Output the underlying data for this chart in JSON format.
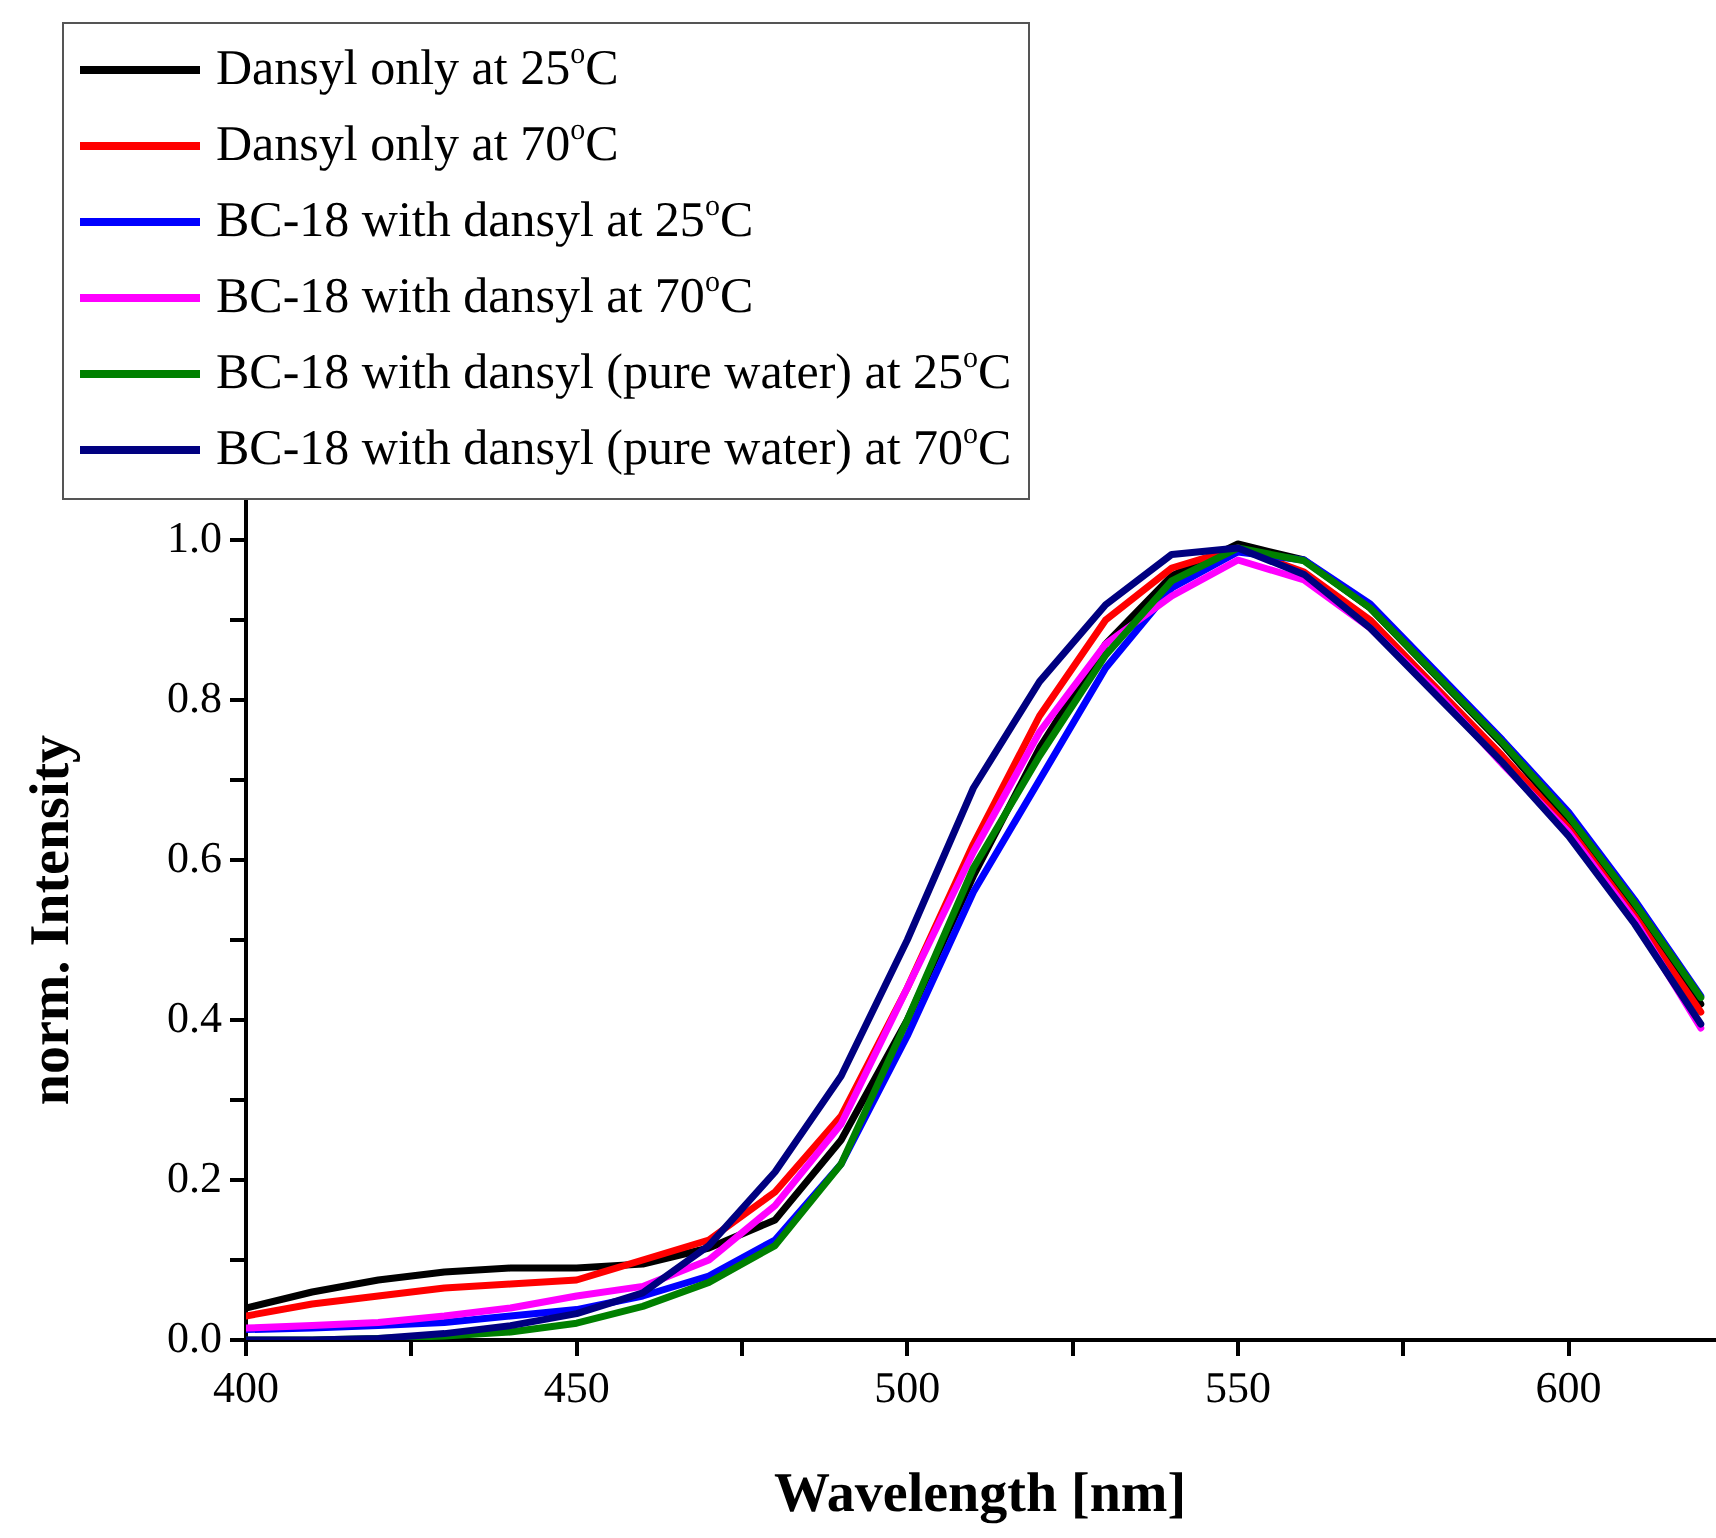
{
  "chart_data": {
    "type": "line",
    "xlabel": "Wavelength [nm]",
    "ylabel": "norm. Intensity",
    "x": [
      400,
      410,
      420,
      430,
      440,
      450,
      460,
      470,
      480,
      490,
      500,
      510,
      520,
      530,
      540,
      550,
      560,
      570,
      580,
      590,
      600,
      610,
      620
    ],
    "series": [
      {
        "name": "Dansyl only at 25$^{o}$C",
        "color": "#000000",
        "values": [
          0.04,
          0.06,
          0.075,
          0.085,
          0.09,
          0.09,
          0.095,
          0.115,
          0.15,
          0.25,
          0.4,
          0.58,
          0.74,
          0.87,
          0.955,
          0.995,
          0.975,
          0.915,
          0.83,
          0.745,
          0.65,
          0.54,
          0.42
        ]
      },
      {
        "name": "Dansyl only at 70$^{o}$C",
        "color": "#ff0000",
        "values": [
          0.03,
          0.045,
          0.055,
          0.065,
          0.07,
          0.075,
          0.1,
          0.125,
          0.185,
          0.28,
          0.44,
          0.62,
          0.78,
          0.9,
          0.965,
          0.99,
          0.96,
          0.9,
          0.815,
          0.73,
          0.64,
          0.53,
          0.41
        ]
      },
      {
        "name": "BC-18 with dansyl at 25$^{o}$C",
        "color": "#0000ff",
        "values": [
          0.013,
          0.015,
          0.018,
          0.022,
          0.03,
          0.038,
          0.055,
          0.08,
          0.125,
          0.22,
          0.38,
          0.56,
          0.7,
          0.84,
          0.94,
          0.985,
          0.975,
          0.92,
          0.835,
          0.75,
          0.66,
          0.55,
          0.43
        ]
      },
      {
        "name": "BC-18 with dansyl at 70$^{o}$C",
        "color": "#ff00ff",
        "values": [
          0.015,
          0.018,
          0.022,
          0.03,
          0.04,
          0.055,
          0.067,
          0.1,
          0.168,
          0.27,
          0.44,
          0.61,
          0.76,
          0.87,
          0.93,
          0.975,
          0.95,
          0.89,
          0.81,
          0.72,
          0.635,
          0.525,
          0.39
        ]
      },
      {
        "name": "BC-18 with dansyl (pure water) at 25$^{o}$C",
        "color": "#008000",
        "values": [
          0,
          0,
          0.002,
          0.005,
          0.01,
          0.021,
          0.042,
          0.072,
          0.118,
          0.22,
          0.4,
          0.59,
          0.73,
          0.856,
          0.949,
          0.99,
          0.974,
          0.915,
          0.831,
          0.747,
          0.655,
          0.546,
          0.428
        ]
      },
      {
        "name": "BC-18 with dansyl (pure water) at 70$^{o}$C",
        "color": "#000080",
        "values": [
          0,
          0,
          0.002,
          0.008,
          0.018,
          0.033,
          0.059,
          0.118,
          0.21,
          0.33,
          0.5,
          0.69,
          0.823,
          0.919,
          0.982,
          0.99,
          0.957,
          0.89,
          0.806,
          0.722,
          0.63,
          0.52,
          0.395
        ]
      }
    ],
    "xlim": [
      400,
      622
    ],
    "xticks": [
      400,
      {
        "value": 425,
        "label": null
      },
      450,
      {
        "value": 475,
        "label": null
      },
      500,
      {
        "value": 525,
        "label": null
      },
      550,
      {
        "value": 575,
        "label": null
      },
      600
    ],
    "ylim": [
      0,
      1.05
    ],
    "yticks": [
      {
        "value": 0,
        "label": "0.0"
      },
      {
        "value": 0.1,
        "label": null
      },
      {
        "value": 0.2,
        "label": "0.2"
      },
      {
        "value": 0.3,
        "label": null
      },
      {
        "value": 0.4,
        "label": "0.4"
      },
      {
        "value": 0.5,
        "label": null
      },
      {
        "value": 0.6,
        "label": "0.6"
      },
      {
        "value": 0.7,
        "label": null
      },
      {
        "value": 0.8,
        "label": "0.8"
      },
      {
        "value": 0.9,
        "label": null
      },
      {
        "value": 1,
        "label": "1.0"
      }
    ],
    "grid": false,
    "legend": "top left",
    "marker": "none",
    "line_style": "solid"
  }
}
